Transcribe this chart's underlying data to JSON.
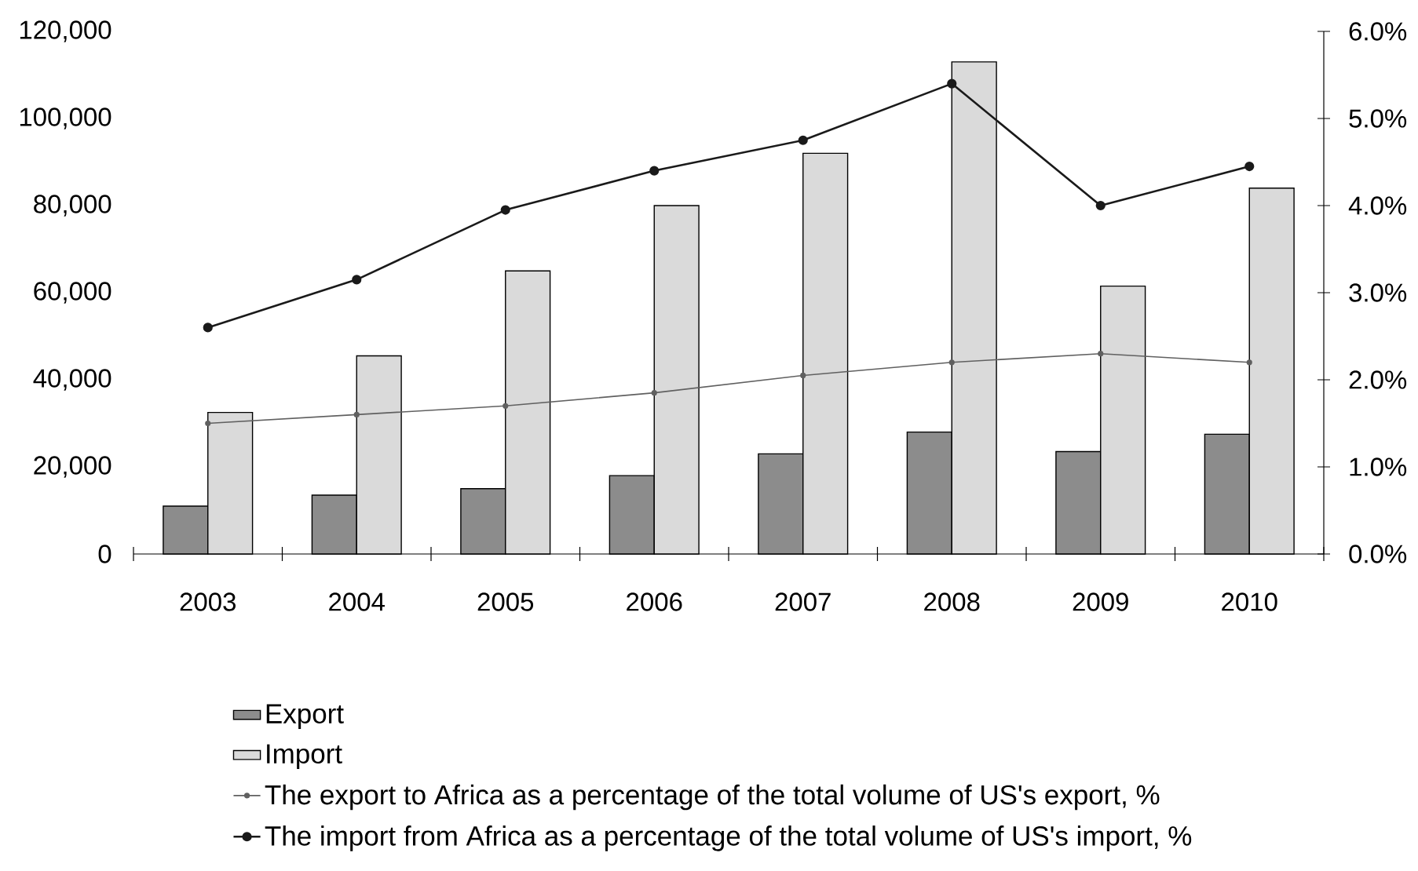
{
  "chart_data": {
    "type": "bar",
    "categories": [
      "2003",
      "2004",
      "2005",
      "2006",
      "2007",
      "2008",
      "2009",
      "2010"
    ],
    "series": [
      {
        "name": "Export",
        "color": "#8c8c8c",
        "values": [
          11000,
          13500,
          15000,
          18000,
          23000,
          28000,
          23500,
          27500
        ]
      },
      {
        "name": "Import",
        "color": "#dadada",
        "values": [
          32500,
          45500,
          65000,
          80000,
          92000,
          113000,
          61500,
          84000
        ]
      },
      {
        "name": "The export to Africa as a percentage of the total volume of US's export, %",
        "type": "line",
        "axis": "y2",
        "color": "#606060",
        "values": [
          1.5,
          1.6,
          1.7,
          1.85,
          2.05,
          2.2,
          2.3,
          2.2
        ]
      },
      {
        "name": "The import from Africa as a percentage of the total volume of US's import, %",
        "type": "line",
        "axis": "y2",
        "color": "#1a1a1a",
        "values": [
          2.6,
          3.15,
          3.95,
          4.4,
          4.75,
          5.4,
          4.0,
          4.45
        ]
      }
    ],
    "ylim": [
      0,
      120000
    ],
    "yticks": [
      0,
      {
        "value": 20000,
        "label": "20,000"
      },
      {
        "value": 40000,
        "label": "40,000"
      },
      {
        "value": 60000,
        "label": "60,000"
      },
      {
        "value": 80000,
        "label": "80,000"
      },
      {
        "value": 100000,
        "label": "100,000"
      },
      {
        "value": 120000,
        "label": "120,000"
      }
    ],
    "y2lim": [
      0,
      6
    ],
    "y2ticks": [
      {
        "value": 0,
        "label": "0.0%"
      },
      {
        "value": 1,
        "label": "1.0%"
      },
      {
        "value": 2,
        "label": "2.0%"
      },
      {
        "value": 3,
        "label": "3.0%"
      },
      {
        "value": 4,
        "label": "4.0%"
      },
      {
        "value": 5,
        "label": "5.0%"
      },
      {
        "value": 6,
        "label": "6.0%"
      }
    ],
    "legend": "bottom",
    "marker": "circle"
  }
}
